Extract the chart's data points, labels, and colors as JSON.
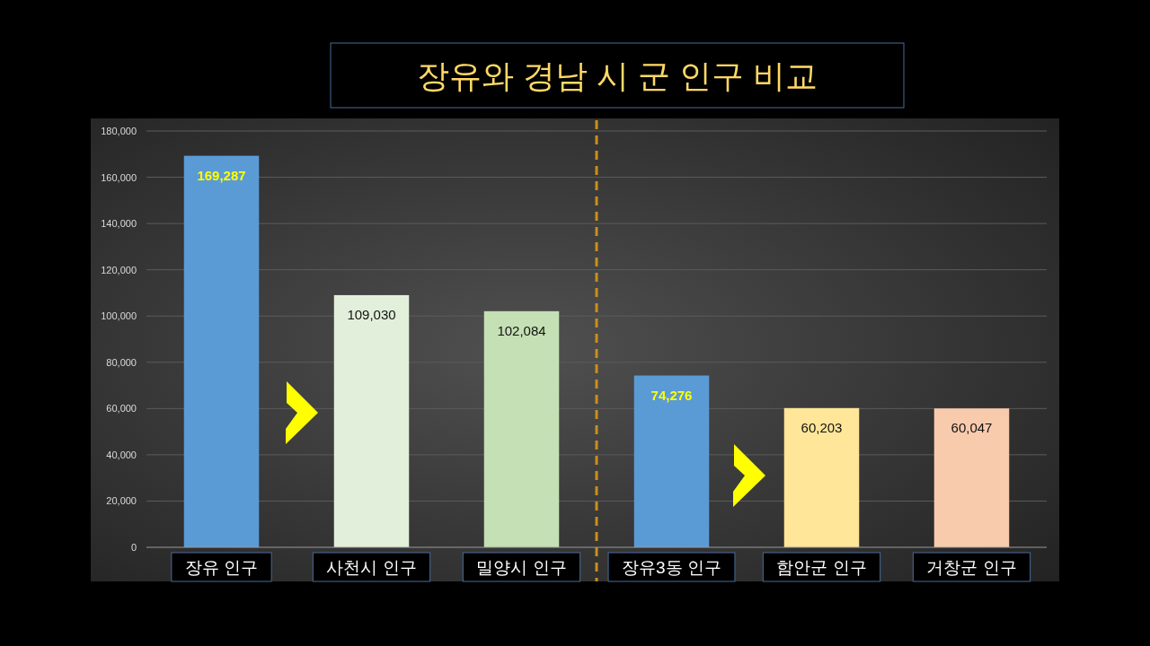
{
  "chart_data": {
    "type": "bar",
    "title": "장유와 경남 시 군 인구 비교",
    "categories": [
      "장유 인구",
      "사천시 인구",
      "밀양시 인구",
      "장유3동 인구",
      "함안군 인구",
      "거창군 인구"
    ],
    "values": [
      169287,
      109030,
      102084,
      74276,
      60203,
      60047
    ],
    "value_labels": [
      "169,287",
      "109,030",
      "102,084",
      "74,276",
      "60,203",
      "60,047"
    ],
    "colors": [
      "#5b9bd5",
      "#e2efda",
      "#c5e0b4",
      "#5b9bd5",
      "#ffe699",
      "#f8cbad"
    ],
    "ylim": [
      0,
      180000
    ],
    "yticks": [
      0,
      {
        "value": 20000,
        "label": "20,000"
      },
      {
        "value": 40000,
        "label": "40,000"
      },
      {
        "value": 60000,
        "label": "60,000"
      },
      {
        "value": 80000,
        "label": "80,000"
      },
      {
        "value": 100000,
        "label": "100,000"
      },
      {
        "value": 120000,
        "label": "120,000"
      },
      {
        "value": 140000,
        "label": "140,000"
      },
      {
        "value": 160000,
        "label": "160,000"
      },
      {
        "value": 180000,
        "label": "180,000"
      }
    ],
    "grid": "y"
  }
}
